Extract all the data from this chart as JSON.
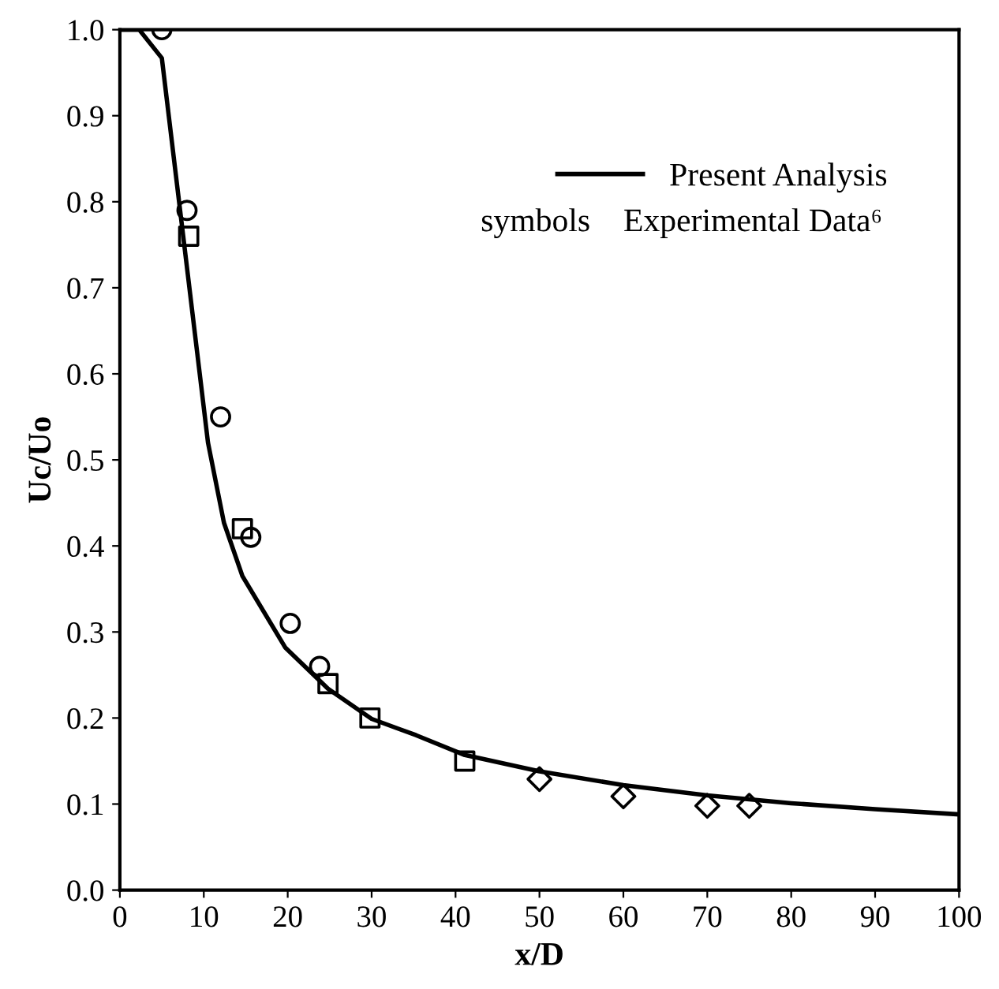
{
  "chart_data": {
    "type": "line",
    "xlabel": "x/D",
    "ylabel": "Uc/Uo",
    "xlim": [
      0,
      100
    ],
    "ylim": [
      0,
      1.0
    ],
    "xticks": [
      0,
      10,
      20,
      30,
      40,
      50,
      60,
      70,
      80,
      90,
      100
    ],
    "yticks": [
      {
        "value": 0,
        "label": "0.0"
      },
      {
        "value": 0.1,
        "label": "0.1"
      },
      {
        "value": 0.2,
        "label": "0.2"
      },
      {
        "value": 0.3,
        "label": "0.3"
      },
      {
        "value": 0.4,
        "label": "0.4"
      },
      {
        "value": 0.5,
        "label": "0.5"
      },
      {
        "value": 0.6,
        "label": "0.6"
      },
      {
        "value": 0.7,
        "label": "0.7"
      },
      {
        "value": 0.8,
        "label": "0.8"
      },
      {
        "value": 0.9,
        "label": "0.9"
      },
      {
        "value": 1.0,
        "label": "1.0"
      }
    ],
    "grid": false,
    "legend": "top right",
    "series": [
      {
        "name": "Present Analysis",
        "color": "#000000",
        "marker": "none",
        "line_style": "solid",
        "x": [
          0,
          2.3,
          5,
          10.5,
          12.4,
          14.6,
          19.7,
          24.8,
          30,
          35.3,
          41.1,
          50,
          60,
          70,
          80,
          90,
          100
        ],
        "values": [
          1.0,
          1.0,
          0.967,
          0.52,
          0.427,
          0.365,
          0.282,
          0.234,
          0.199,
          0.18,
          0.157,
          0.138,
          0.122,
          0.11,
          0.101,
          0.094,
          0.088
        ]
      },
      {
        "type": "scatter",
        "color": "#000000",
        "marker": "circle",
        "x": [
          5,
          8,
          12,
          15.6,
          20.3,
          23.8
        ],
        "values": [
          1.0,
          0.79,
          0.55,
          0.41,
          0.31,
          0.26
        ]
      },
      {
        "type": "scatter",
        "color": "#000000",
        "marker": "square",
        "x": [
          8.2,
          14.6,
          24.8,
          29.8,
          41.1
        ],
        "values": [
          0.76,
          0.42,
          0.24,
          0.2,
          0.15
        ]
      },
      {
        "type": "scatter",
        "color": "#000000",
        "marker": "diamond",
        "x": [
          50,
          60,
          70,
          75
        ],
        "values": [
          0.129,
          0.109,
          0.098,
          0.098
        ]
      }
    ],
    "annotations": [
      "symbols",
      "Experimental Data⁶"
    ]
  }
}
